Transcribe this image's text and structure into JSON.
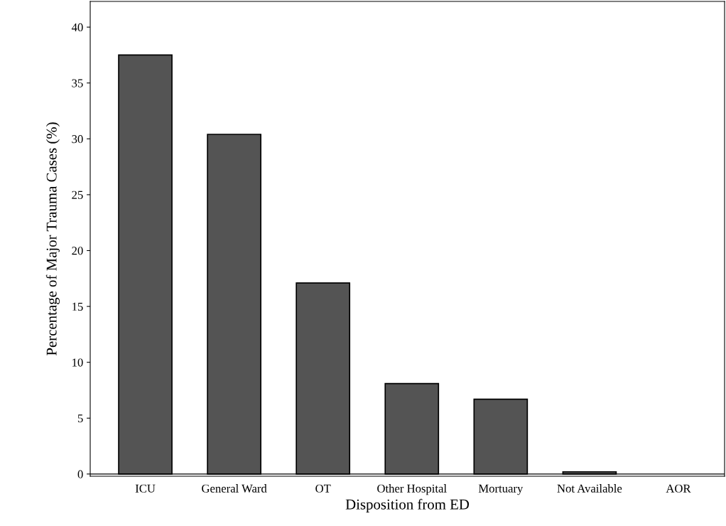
{
  "chart_data": {
    "type": "bar",
    "xlabel": "Disposition from ED",
    "ylabel": "Percentage of Major Trauma Cases (%)",
    "categories": [
      "ICU",
      "General Ward",
      "OT",
      "Other Hospital",
      "Mortuary",
      "Not Available",
      "AOR"
    ],
    "values": [
      37.5,
      30.4,
      17.1,
      8.1,
      6.7,
      0.2,
      0
    ],
    "color": "#545454",
    "ylim": [
      -0.2,
      42.3
    ],
    "yticks": [
      0,
      5,
      10,
      15,
      20,
      25,
      30,
      35,
      40
    ],
    "ref_lines": [
      {
        "axis": "y",
        "value": 0,
        "color": "#000000",
        "line_style": "solid"
      }
    ],
    "grid": false
  }
}
